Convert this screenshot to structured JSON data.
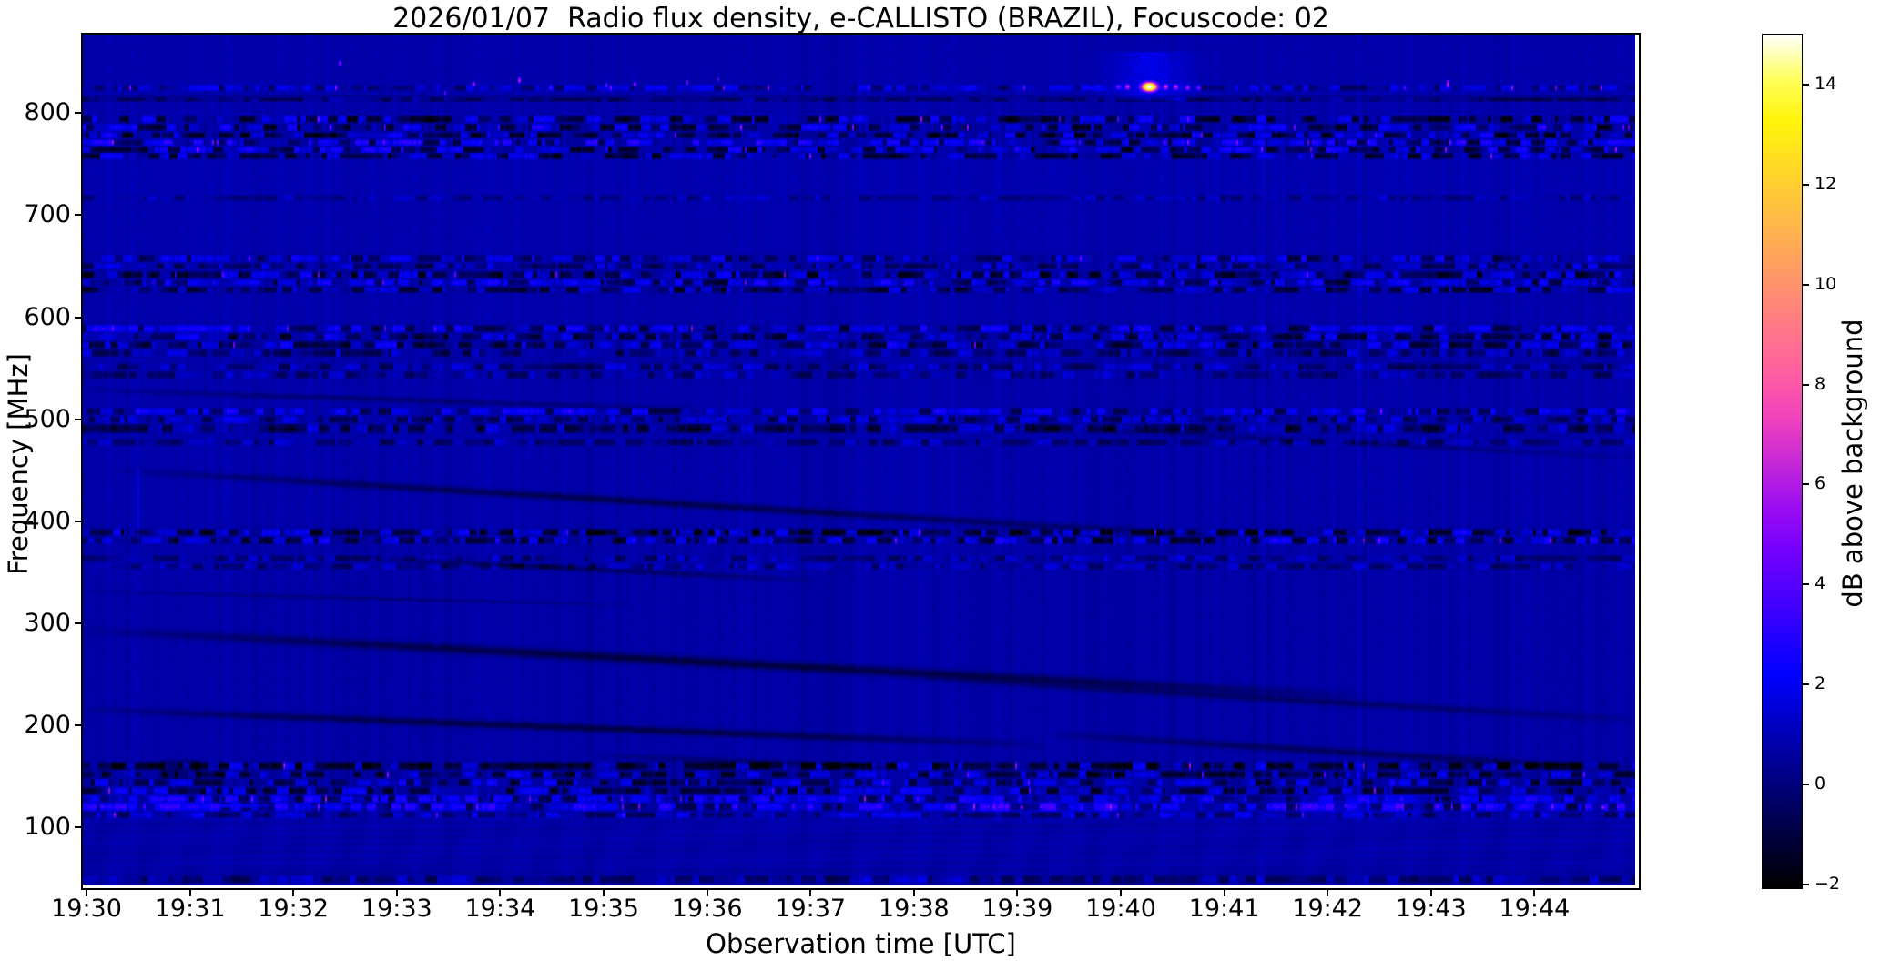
{
  "figure": {
    "title": "2026/01/07  Radio flux density, e-CALLISTO (BRAZIL), Focuscode: 02"
  },
  "chart_data": {
    "type": "heatmap",
    "title": "2026/01/07  Radio flux density, e-CALLISTO (BRAZIL), Focuscode: 02",
    "xlabel": "Observation time [UTC]",
    "ylabel": "Frequency [MHz]",
    "x_ticks": [
      "19:30",
      "19:31",
      "19:32",
      "19:33",
      "19:34",
      "19:35",
      "19:36",
      "19:37",
      "19:38",
      "19:39",
      "19:40",
      "19:41",
      "19:42",
      "19:43",
      "19:44"
    ],
    "x_range_minutes": [
      0,
      15.0
    ],
    "y_ticks": [
      800,
      700,
      600,
      500,
      400,
      300,
      200,
      100
    ],
    "ylim": [
      44,
      877
    ],
    "grid": false,
    "colorbar": {
      "label": "dB above background",
      "tick_values": [
        14,
        12,
        10,
        8,
        6,
        4,
        2,
        0,
        -2
      ],
      "tick_labels": [
        "14",
        "12",
        "10",
        "8",
        "6",
        "4",
        "2",
        "0",
        "−2"
      ],
      "vmin": -2,
      "vmax": 15,
      "colormap": "gnuplot2"
    },
    "background_level_db": 0.8,
    "zones_comment": "broad horizontal texture zones: [f_hi,f_lo,base_db,stripe_amp,noise_amp]",
    "zones": [
      [
        877.2,
        831.0,
        0.85,
        0.22,
        0.3
      ],
      [
        831.0,
        817.7,
        0.9,
        0.3,
        0.35
      ],
      [
        817.7,
        810.6,
        0.5,
        0.25,
        0.3
      ],
      [
        810.6,
        798.2,
        0.85,
        0.35,
        0.4
      ],
      [
        798.2,
        755.5,
        0.8,
        0.5,
        0.5
      ],
      [
        755.5,
        720.0,
        0.95,
        0.3,
        0.3
      ],
      [
        720.0,
        664.0,
        0.9,
        0.28,
        0.3
      ],
      [
        664.0,
        622.2,
        0.8,
        0.45,
        0.45
      ],
      [
        622.2,
        595.6,
        0.88,
        0.3,
        0.3
      ],
      [
        595.6,
        537.9,
        0.8,
        0.45,
        0.4
      ],
      [
        537.9,
        513.0,
        0.85,
        0.32,
        0.3
      ],
      [
        513.0,
        484.6,
        0.8,
        0.42,
        0.4
      ],
      [
        484.6,
        395.8,
        0.85,
        0.35,
        0.3
      ],
      [
        395.8,
        376.3,
        0.75,
        0.5,
        0.5
      ],
      [
        376.3,
        342.5,
        0.8,
        0.4,
        0.35
      ],
      [
        342.5,
        166.6,
        0.78,
        0.3,
        0.3
      ],
      [
        166.6,
        132.0,
        0.7,
        0.5,
        0.5
      ],
      [
        132.0,
        106.2,
        0.9,
        0.5,
        0.45
      ],
      [
        106.2,
        60.0,
        0.8,
        0.15,
        0.15
      ],
      [
        60.0,
        44.0,
        0.7,
        0.25,
        0.25
      ]
    ],
    "rfi_bands_comment": "dashed RFI lines: [f_hi,f_lo,dark_frac,bright_frac,dark_amp_db,bright_amp_db,purple_prob]",
    "rfi_bands": [
      [
        828.3,
        823.0,
        0.25,
        0.35,
        1.2,
        1.3,
        0.004
      ],
      [
        815.9,
        811.5,
        0.55,
        0.1,
        1.0,
        0.6,
        0.0
      ],
      [
        797.3,
        791.0,
        0.45,
        0.3,
        2.2,
        1.6,
        0.003
      ],
      [
        789.3,
        783.0,
        0.4,
        0.35,
        2.0,
        1.8,
        0.004
      ],
      [
        781.3,
        775.9,
        0.45,
        0.3,
        2.2,
        1.5,
        0.003
      ],
      [
        774.2,
        768.8,
        0.25,
        0.5,
        1.6,
        2.2,
        0.006
      ],
      [
        767.1,
        761.7,
        0.35,
        0.4,
        2.0,
        2.0,
        0.005
      ],
      [
        760.8,
        755.5,
        0.45,
        0.3,
        2.2,
        1.4,
        0.002
      ],
      [
        720.0,
        714.6,
        0.5,
        0.15,
        0.9,
        0.7,
        0.0
      ],
      [
        661.3,
        655.1,
        0.3,
        0.45,
        1.5,
        1.7,
        0.002
      ],
      [
        653.3,
        648.0,
        0.4,
        0.3,
        1.4,
        1.2,
        0.0
      ],
      [
        645.3,
        639.1,
        0.55,
        0.25,
        2.2,
        1.4,
        0.002
      ],
      [
        637.4,
        632.0,
        0.3,
        0.45,
        1.8,
        1.8,
        0.003
      ],
      [
        630.3,
        624.9,
        0.5,
        0.28,
        2.0,
        1.2,
        0.0
      ],
      [
        592.1,
        585.9,
        0.35,
        0.45,
        1.8,
        1.8,
        0.003
      ],
      [
        584.1,
        577.9,
        0.5,
        0.28,
        2.0,
        1.3,
        0.0
      ],
      [
        576.1,
        569.9,
        0.4,
        0.35,
        1.8,
        1.5,
        0.002
      ],
      [
        568.1,
        561.9,
        0.45,
        0.25,
        1.6,
        1.0,
        0.0
      ],
      [
        554.8,
        548.6,
        0.4,
        0.3,
        1.3,
        1.0,
        0.0
      ],
      [
        546.8,
        540.6,
        0.45,
        0.22,
        1.2,
        0.8,
        0.0
      ],
      [
        511.3,
        505.1,
        0.25,
        0.5,
        1.4,
        1.7,
        0.002
      ],
      [
        503.3,
        497.1,
        0.4,
        0.3,
        1.5,
        1.2,
        0.0
      ],
      [
        495.3,
        487.3,
        0.52,
        0.22,
        1.9,
        1.0,
        0.0
      ],
      [
        481.1,
        474.9,
        0.45,
        0.2,
        1.3,
        0.8,
        0.0
      ],
      [
        392.3,
        386.1,
        0.55,
        0.3,
        2.4,
        1.6,
        0.002
      ],
      [
        384.3,
        378.1,
        0.35,
        0.45,
        1.9,
        1.9,
        0.003
      ],
      [
        366.5,
        361.2,
        0.42,
        0.28,
        1.2,
        0.9,
        0.0
      ],
      [
        358.5,
        353.2,
        0.45,
        0.22,
        1.1,
        0.8,
        0.0
      ],
      [
        164.0,
        156.9,
        0.6,
        0.22,
        2.4,
        1.3,
        0.002
      ],
      [
        155.1,
        148.9,
        0.5,
        0.28,
        2.0,
        1.4,
        0.002
      ],
      [
        147.1,
        140.9,
        0.4,
        0.35,
        1.8,
        1.6,
        0.002
      ],
      [
        139.1,
        132.9,
        0.45,
        0.3,
        1.9,
        1.5,
        0.002
      ],
      [
        131.1,
        124.9,
        0.28,
        0.5,
        1.5,
        1.9,
        0.004
      ],
      [
        124.0,
        116.9,
        0.25,
        0.55,
        1.4,
        2.2,
        0.005
      ],
      [
        115.1,
        109.8,
        0.38,
        0.32,
        1.3,
        1.2,
        0.002
      ],
      [
        52.9,
        45.8,
        0.45,
        0.25,
        1.2,
        0.9,
        0.0
      ]
    ],
    "drift_streaks_comment": "slow negative-drift dark lanes: [t0_min,f0_MHz,t1_min,f1_MHz,half_width_px,amp_db]",
    "drift_streaks": [
      [
        -0.04,
        529,
        6.03,
        510,
        3,
        -0.9
      ],
      [
        0.22,
        451,
        11.05,
        385,
        4,
        -1.5
      ],
      [
        8.85,
        495,
        15.1,
        462,
        3,
        -0.7
      ],
      [
        2.39,
        366,
        7.09,
        342,
        3,
        -1.1
      ],
      [
        -0.04,
        294,
        12.37,
        229,
        5,
        -1.7
      ],
      [
        -0.04,
        332,
        5.33,
        318,
        2,
        -0.7
      ],
      [
        -0.04,
        216,
        9.29,
        181,
        4,
        -1.6
      ],
      [
        7.97,
        247,
        15.1,
        205,
        4,
        -1.0
      ],
      [
        9.29,
        192,
        15.1,
        156,
        4,
        -1.2
      ],
      [
        4.89,
        171,
        7.97,
        159,
        3,
        -0.9
      ]
    ],
    "vertical_lines_comment": "faint bright time-marker columns: [t_min,f_top,f_bottom,amp_db,width_px]",
    "vertical_lines": [
      [
        0.49,
        560,
        148,
        0.5,
        2
      ],
      [
        0.49,
        451,
        380,
        0.9,
        2
      ]
    ],
    "point_sources_comment": "small magenta/violet specks: [t_min,f_MHz,value_db,w_px,h_px]",
    "point_sources": [
      [
        2.45,
        849,
        5.0,
        3,
        5
      ],
      [
        3.47,
        820,
        4.5,
        2,
        5
      ],
      [
        3.74,
        829,
        5.5,
        3,
        5
      ],
      [
        4.18,
        832,
        6.0,
        3,
        6
      ],
      [
        5.03,
        828,
        4.8,
        2,
        5
      ],
      [
        5.3,
        829,
        5.2,
        3,
        5
      ],
      [
        5.81,
        831,
        5.0,
        2,
        5
      ],
      [
        6.11,
        833,
        4.6,
        2,
        4
      ],
      [
        13.16,
        829,
        6.5,
        3,
        9
      ],
      [
        9.04,
        120,
        5.0,
        3,
        4
      ],
      [
        14.66,
        120,
        5.5,
        3,
        4
      ],
      [
        12.17,
        122,
        4.5,
        2,
        4
      ]
    ],
    "burst": {
      "comment": "bright narrowband burst near 19:40 at ~826 MHz, peak ~15 dB (yellow-white core, magenta flanks, blue haze)",
      "t_center_min": 10.27,
      "f_center": 826,
      "core_db": 15,
      "haze_halfwidth_min": 0.35,
      "haze_amp_db": 0.9,
      "flank_dashes": [
        [
          -0.3,
          826.0,
          5.5
        ],
        [
          -0.21,
          826.5,
          6.8
        ],
        [
          0.16,
          826.5,
          7.0
        ],
        [
          0.26,
          826.0,
          6.6
        ],
        [
          0.37,
          825.5,
          6.0
        ],
        [
          0.48,
          825.0,
          5.3
        ]
      ]
    },
    "bright_streaks_comment": "[t0,t1,f_MHz,value_db]",
    "bright_streaks": [
      [
        0.62,
        1.8,
        122,
        2.4
      ],
      [
        1.8,
        2.9,
        121,
        1.5
      ]
    ],
    "bright_patches_comment": "[t0,t1,f_hi,f_lo,amp_db]",
    "bright_patches": [
      [
        8.5,
        9.9,
        125,
        115,
        0.5
      ],
      [
        11.7,
        12.9,
        125,
        115,
        0.5
      ],
      [
        0.7,
        1.1,
        166,
        148,
        -0.8
      ]
    ],
    "moire": {
      "below_f": 106,
      "amp_db": 0.17
    }
  }
}
